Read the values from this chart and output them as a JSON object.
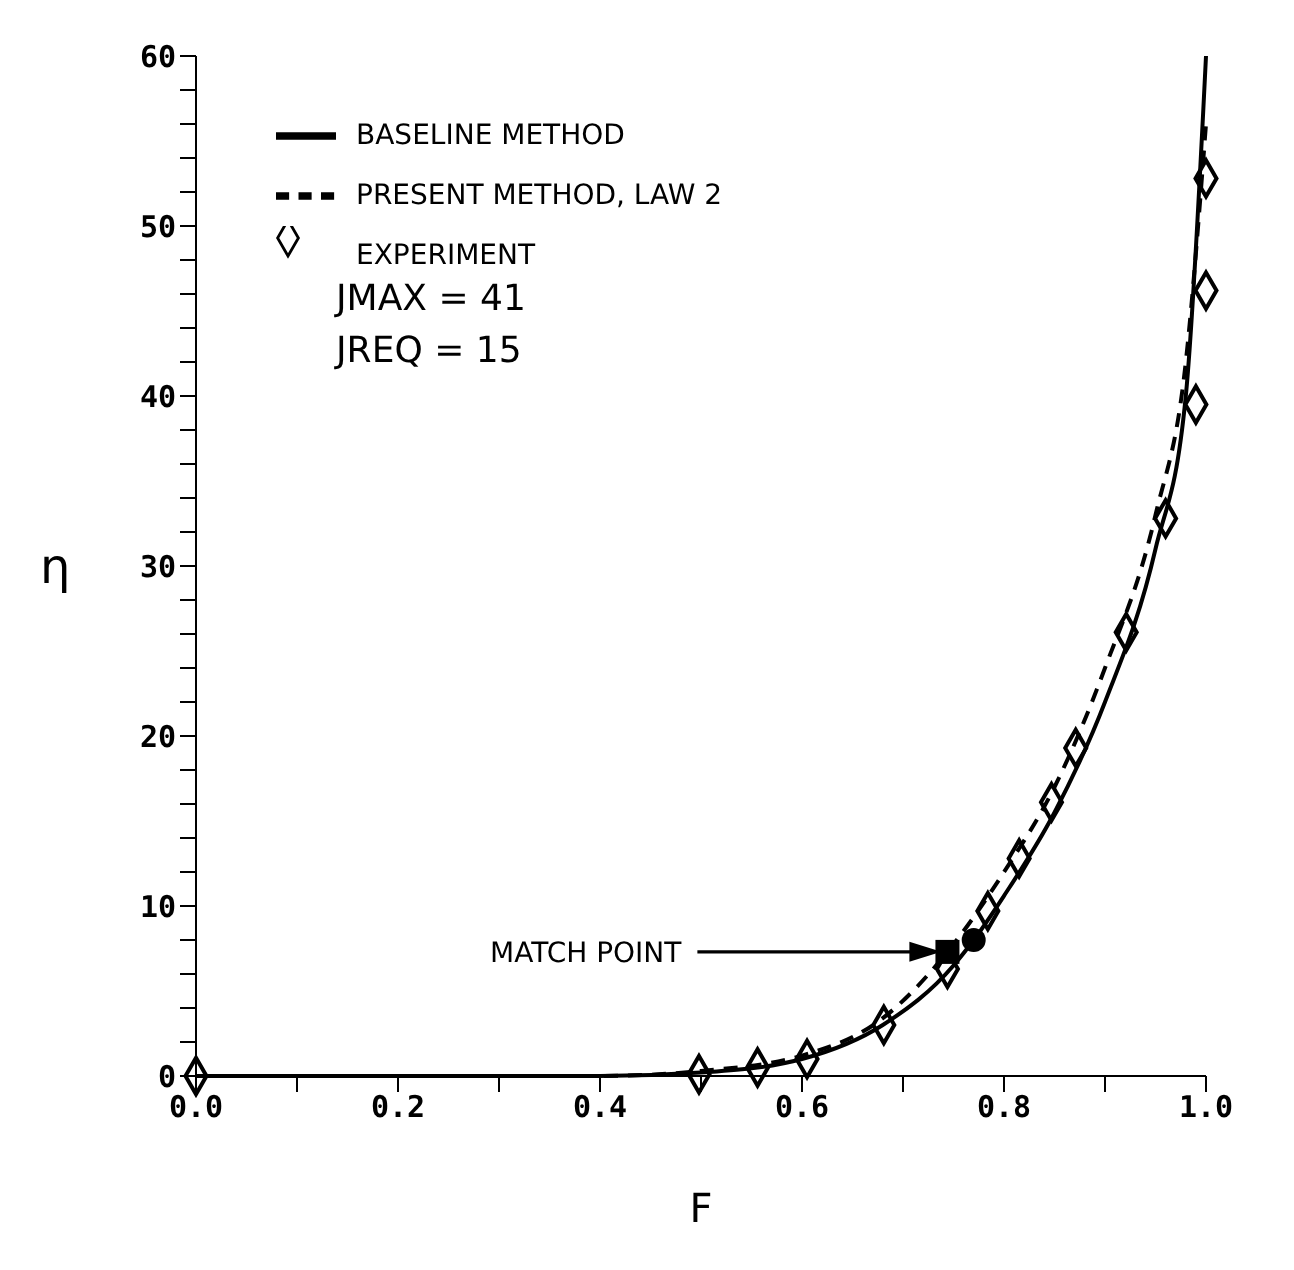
{
  "chart_data": {
    "type": "line",
    "xlabel": "F",
    "ylabel": "η",
    "xlim": [
      0,
      1
    ],
    "ylim": [
      0,
      60
    ],
    "xticks": [
      {
        "value": 0,
        "label": "0.0"
      },
      {
        "value": 0.1,
        "label": null
      },
      {
        "value": 0.2,
        "label": "0.2"
      },
      {
        "value": 0.3,
        "label": null
      },
      {
        "value": 0.4,
        "label": "0.4"
      },
      {
        "value": 0.5,
        "label": null
      },
      {
        "value": 0.6,
        "label": "0.6"
      },
      {
        "value": 0.7,
        "label": null
      },
      {
        "value": 0.8,
        "label": "0.8"
      },
      {
        "value": 0.9,
        "label": null
      },
      {
        "value": 1,
        "label": "1.0"
      }
    ],
    "yticks": [
      0,
      {
        "value": 2,
        "label": null
      },
      {
        "value": 4,
        "label": null
      },
      {
        "value": 6,
        "label": null
      },
      {
        "value": 8,
        "label": null
      },
      10,
      {
        "value": 12,
        "label": null
      },
      {
        "value": 14,
        "label": null
      },
      {
        "value": 16,
        "label": null
      },
      {
        "value": 18,
        "label": null
      },
      20,
      {
        "value": 22,
        "label": null
      },
      {
        "value": 24,
        "label": null
      },
      {
        "value": 26,
        "label": null
      },
      {
        "value": 28,
        "label": null
      },
      30,
      {
        "value": 32,
        "label": null
      },
      {
        "value": 34,
        "label": null
      },
      {
        "value": 36,
        "label": null
      },
      {
        "value": 38,
        "label": null
      },
      40,
      {
        "value": 42,
        "label": null
      },
      {
        "value": 44,
        "label": null
      },
      {
        "value": 46,
        "label": null
      },
      {
        "value": 48,
        "label": null
      },
      50,
      {
        "value": 52,
        "label": null
      },
      {
        "value": 54,
        "label": null
      },
      {
        "value": 56,
        "label": null
      },
      {
        "value": 58,
        "label": null
      },
      60
    ],
    "grid": false,
    "legend": "top left",
    "series": [
      {
        "name": "BASELINE METHOD",
        "type": "line",
        "line_style": "solid",
        "marker": "none",
        "color": "#000000",
        "x": [
          0,
          0.4,
          0.5,
          0.6,
          0.68,
          0.75,
          0.77,
          0.8,
          0.85,
          0.9,
          0.95,
          0.98,
          1.0
        ],
        "values": [
          0,
          0,
          0.2,
          1.0,
          3.0,
          6.5,
          8.0,
          10.6,
          15.5,
          22,
          31,
          40,
          60
        ]
      },
      {
        "name": "PRESENT METHOD, LAW 2",
        "line_style": "dashed",
        "marker": "none",
        "color": "#000000",
        "x": [
          0,
          0.4,
          0.5,
          0.6,
          0.68,
          0.744,
          0.8,
          0.85,
          0.9,
          0.95,
          0.98,
          1.0
        ],
        "values": [
          0,
          0,
          0.3,
          1.2,
          3.4,
          7.3,
          12,
          17,
          24,
          33,
          42,
          56
        ]
      },
      {
        "name": "EXPERIMENT",
        "type": "scatter",
        "marker": "diamond",
        "color": "#000000",
        "x": [
          0,
          0.498,
          0.556,
          0.605,
          0.681,
          0.744,
          0.784,
          0.815,
          0.847,
          0.871,
          0.921,
          0.96,
          0.99,
          1.0,
          1.0
        ],
        "values": [
          0,
          0.1,
          0.5,
          1.0,
          3.0,
          6.3,
          9.7,
          12.8,
          16.1,
          19.3,
          26.1,
          32.8,
          39.5,
          46.2,
          52.8
        ]
      },
      {
        "type": "scatter",
        "marker": "circle",
        "color": "#000000",
        "x": [
          0.77
        ],
        "values": [
          8.0
        ]
      },
      {
        "type": "scatter",
        "marker": "square",
        "color": "#000000",
        "x": [
          0.744
        ],
        "values": [
          7.3
        ]
      }
    ],
    "annotations": [
      "JMAX = 41",
      "JREQ = 15",
      "MATCH POINT"
    ]
  }
}
